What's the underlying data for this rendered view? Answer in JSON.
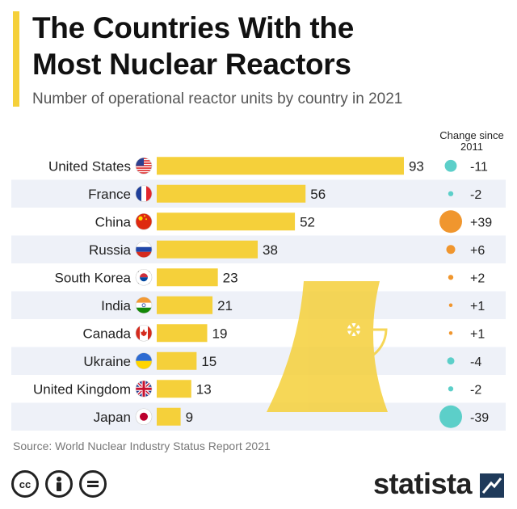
{
  "title_line1": "The Countries With the",
  "title_line2": "Most Nuclear Reactors",
  "subtitle": "Number of operational reactor units by country in 2021",
  "source": "Source: World Nuclear Industry Status Report 2021",
  "brand": "statista",
  "license_icons": [
    "cc-icon",
    "person-icon",
    "equals-icon"
  ],
  "colors": {
    "bar": "#f5d03a",
    "band": "#eef1f8",
    "increase": "#f0962e",
    "decrease": "#5ccfc9",
    "watermark": "#f5d03a"
  },
  "chart_data": {
    "type": "bar",
    "orientation": "horizontal",
    "title": "The Countries With the Most Nuclear Reactors",
    "subtitle": "Number of operational reactor units by country in 2021",
    "change_header": "Change since 2011",
    "categories": [
      "United States",
      "France",
      "China",
      "Russia",
      "South Korea",
      "India",
      "Canada",
      "Ukraine",
      "United Kingdom",
      "Japan"
    ],
    "values": [
      93,
      56,
      52,
      38,
      23,
      21,
      19,
      15,
      13,
      9
    ],
    "change": [
      -11,
      -2,
      39,
      6,
      2,
      1,
      1,
      -4,
      -2,
      -39
    ],
    "change_labels": [
      "-11",
      "-2",
      "+39",
      "+6",
      "+2",
      "+1",
      "+1",
      "-4",
      "-2",
      "-39"
    ],
    "flags": [
      "flag-us",
      "flag-fr",
      "flag-cn",
      "flag-ru",
      "flag-kr",
      "flag-in",
      "flag-ca",
      "flag-ua",
      "flag-uk",
      "flag-jp"
    ],
    "xlim": [
      0,
      100
    ]
  }
}
